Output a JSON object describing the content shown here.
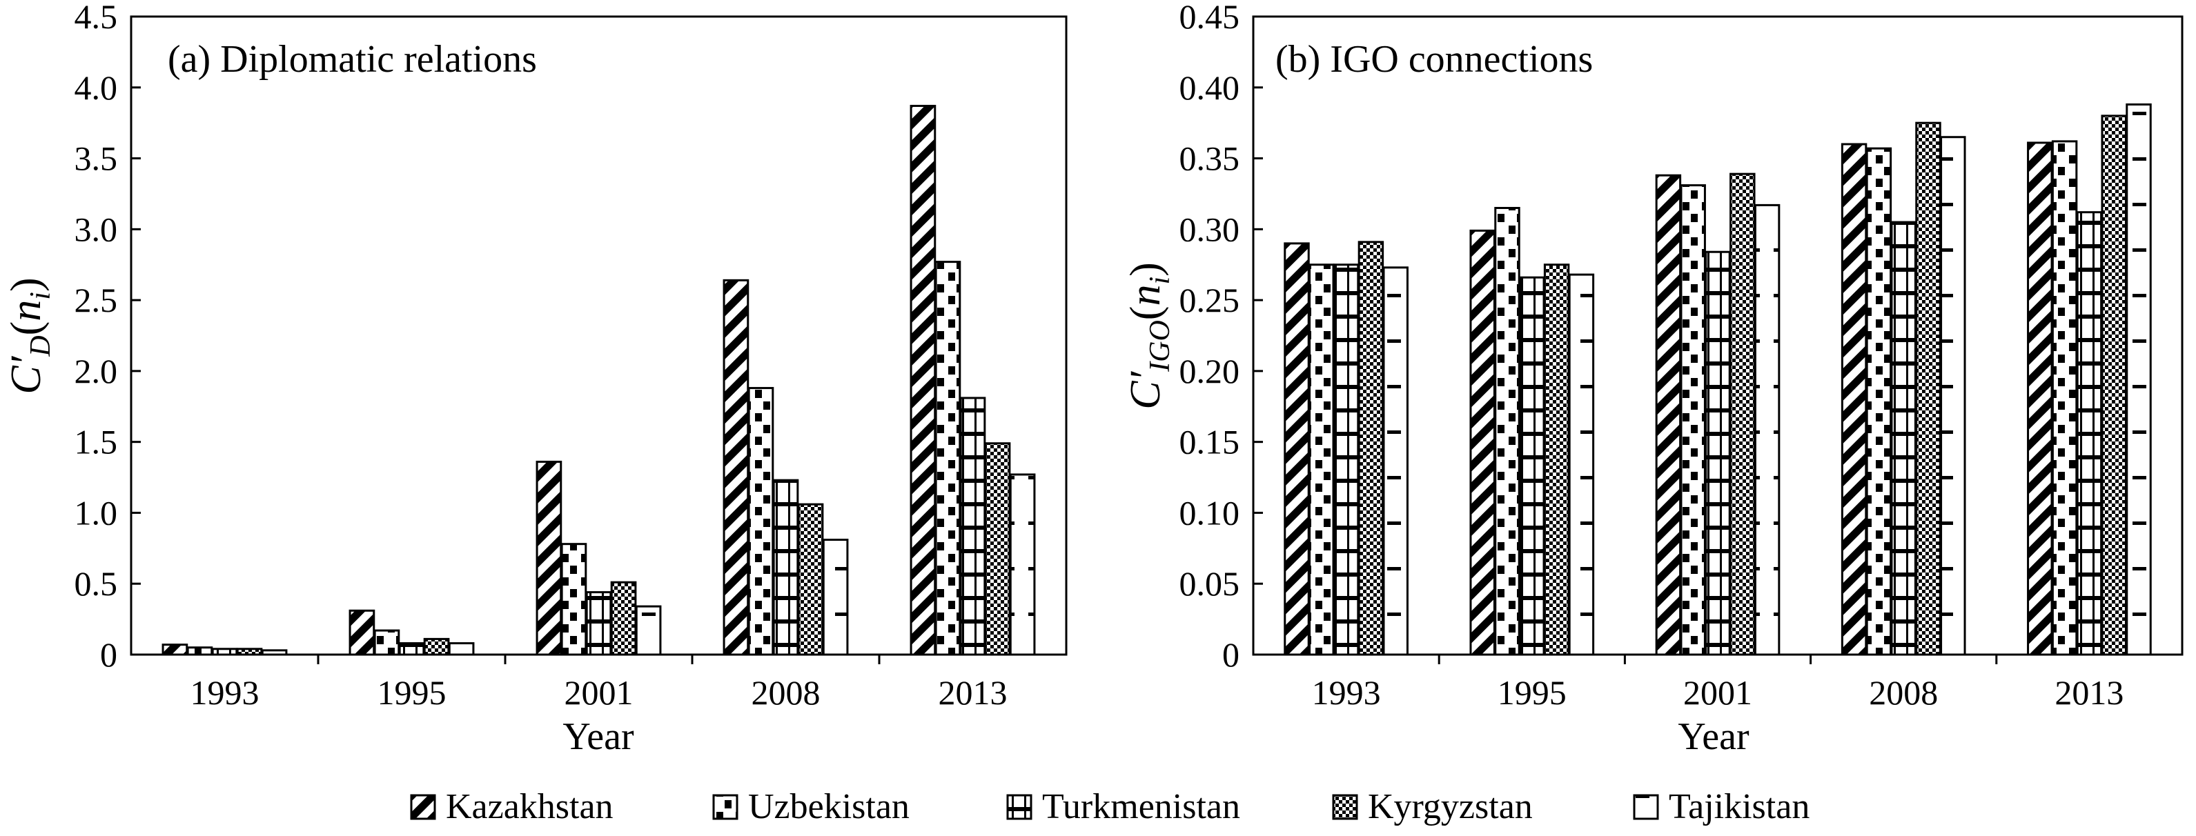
{
  "chart_data": [
    {
      "type": "bar",
      "title": "(a) Diplomatic relations",
      "xlabel": "Year",
      "ylabel": "C′D(ni)",
      "ylabel_parts": {
        "main": "C′",
        "sub": "D",
        "paren_open": "(",
        "arg": "n",
        "arg_sub": "i",
        "paren_close": ")"
      },
      "ylim": [
        0,
        4.5
      ],
      "yticks": [
        "0",
        "0.5",
        "1.0",
        "1.5",
        "2.0",
        "2.5",
        "3.0",
        "3.5",
        "4.0",
        "4.5"
      ],
      "categories": [
        "1993",
        "1995",
        "2001",
        "2008",
        "2013"
      ],
      "series": [
        {
          "name": "Kazakhstan",
          "values": [
            0.07,
            0.31,
            1.36,
            2.64,
            3.87
          ]
        },
        {
          "name": "Uzbekistan",
          "values": [
            0.05,
            0.17,
            0.78,
            1.88,
            2.77
          ]
        },
        {
          "name": "Turkmenistan",
          "values": [
            0.04,
            0.08,
            0.44,
            1.23,
            1.81
          ]
        },
        {
          "name": "Kyrgyzstan",
          "values": [
            0.04,
            0.11,
            0.51,
            1.06,
            1.49
          ]
        },
        {
          "name": "Tajikistan",
          "values": [
            0.03,
            0.08,
            0.34,
            0.81,
            1.27
          ]
        }
      ]
    },
    {
      "type": "bar",
      "title": "(b) IGO connections",
      "xlabel": "Year",
      "ylabel": "C′IGO(ni)",
      "ylabel_parts": {
        "main": "C′",
        "sub": "IGO",
        "paren_open": "(",
        "arg": "n",
        "arg_sub": "i",
        "paren_close": ")"
      },
      "ylim": [
        0,
        0.45
      ],
      "yticks": [
        "0",
        "0.05",
        "0.10",
        "0.15",
        "0.20",
        "0.25",
        "0.30",
        "0.35",
        "0.40",
        "0.45"
      ],
      "categories": [
        "1993",
        "1995",
        "2001",
        "2008",
        "2013"
      ],
      "series": [
        {
          "name": "Kazakhstan",
          "values": [
            0.29,
            0.299,
            0.338,
            0.36,
            0.361
          ]
        },
        {
          "name": "Uzbekistan",
          "values": [
            0.275,
            0.315,
            0.331,
            0.357,
            0.362
          ]
        },
        {
          "name": "Turkmenistan",
          "values": [
            0.275,
            0.266,
            0.284,
            0.305,
            0.312
          ]
        },
        {
          "name": "Kyrgyzstan",
          "values": [
            0.291,
            0.275,
            0.339,
            0.375,
            0.38
          ]
        },
        {
          "name": "Tajikistan",
          "values": [
            0.273,
            0.268,
            0.317,
            0.365,
            0.388
          ]
        }
      ]
    }
  ],
  "legend": {
    "placement": "bottom",
    "items": [
      {
        "name": "Kazakhstan",
        "pattern": "diagonal-stripes"
      },
      {
        "name": "Uzbekistan",
        "pattern": "checker-half"
      },
      {
        "name": "Turkmenistan",
        "pattern": "grid"
      },
      {
        "name": "Kyrgyzstan",
        "pattern": "fine-checker"
      },
      {
        "name": "Tajikistan",
        "pattern": "dashed-lines"
      }
    ]
  },
  "colors": {
    "bar_stroke": "#000000",
    "background": "#ffffff"
  }
}
